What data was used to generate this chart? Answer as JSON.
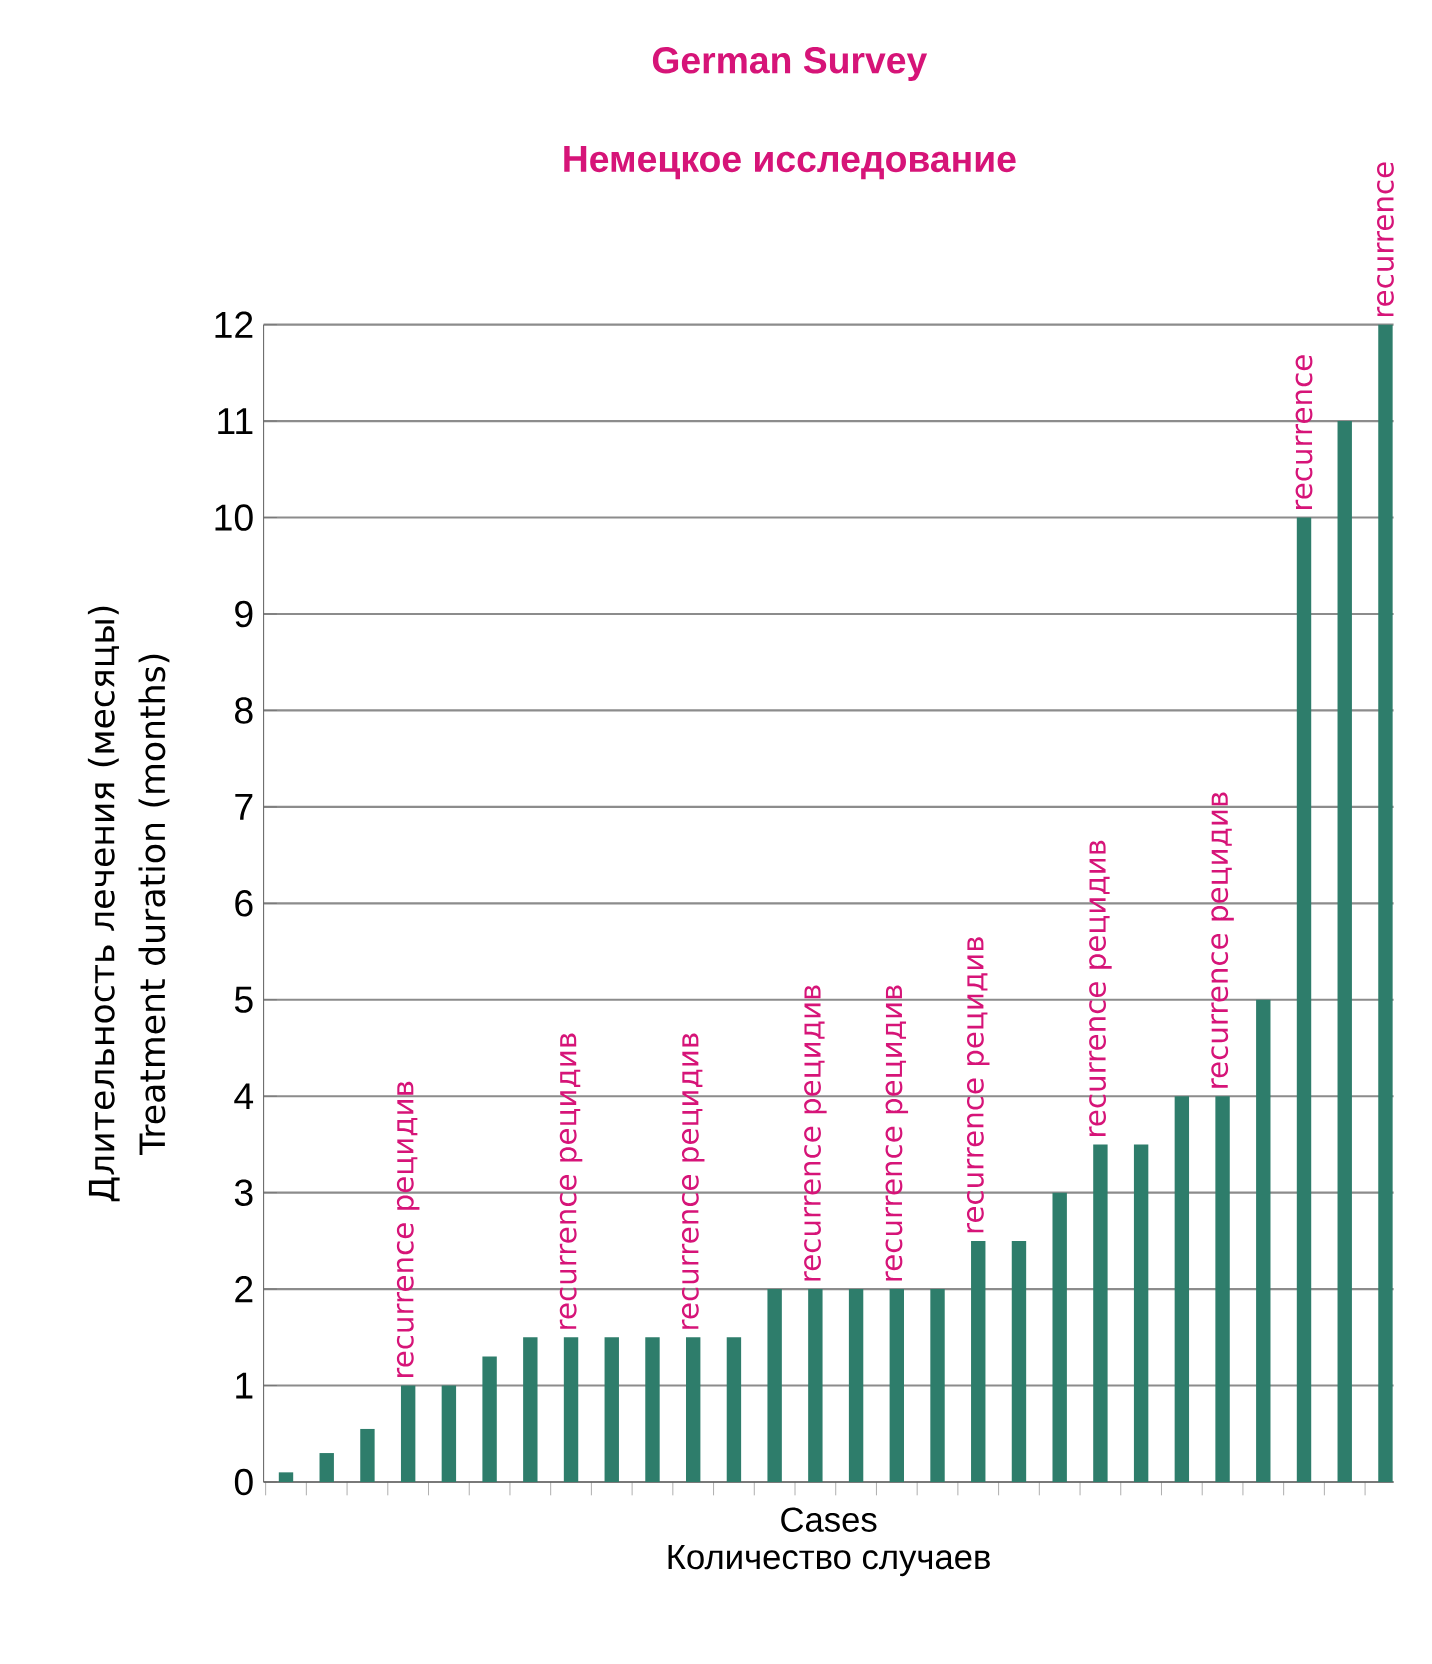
{
  "chart_data": {
    "type": "bar",
    "title": "German Survey",
    "subtitle": "Немецкое исследование",
    "xlabel": "Cases\nКоличество случаев",
    "ylabel": "Длительность лечения (месяцы) Treatment duration (months)",
    "categories": [
      null,
      null,
      null,
      null,
      null,
      null,
      null,
      null,
      null,
      null,
      null,
      null,
      null,
      null,
      null,
      null,
      null,
      null,
      null,
      null,
      null,
      null,
      null,
      null,
      null,
      null,
      null,
      null
    ],
    "values": [
      0.1,
      0.3,
      0.55,
      1,
      1,
      1.3,
      1.5,
      1.5,
      1.5,
      1.5,
      1.5,
      1.5,
      2,
      2,
      2,
      2,
      2,
      2.5,
      2.5,
      3,
      3.5,
      3.5,
      4,
      4,
      5,
      10,
      11,
      12
    ],
    "color": "#2e7d6b",
    "ylim": [
      0,
      12
    ],
    "yticks": [
      0,
      1,
      2,
      3,
      4,
      5,
      6,
      7,
      8,
      9,
      10,
      11,
      12
    ],
    "grid": "y",
    "annotations": [
      {
        "text": "recurrence  рецидив"
      },
      {
        "text": "recurrence  рецидив"
      },
      {
        "text": "recurrence  рецидив"
      },
      {
        "text": "recurrence  рецидив"
      },
      {
        "text": "recurrence  рецидив"
      },
      {
        "text": "recurrence  рецидив"
      },
      {
        "text": "recurrence  рецидив"
      },
      {
        "text": "recurrence  рецидив"
      },
      {
        "text": "recurrence"
      },
      {
        "text": "recurrence"
      }
    ]
  }
}
